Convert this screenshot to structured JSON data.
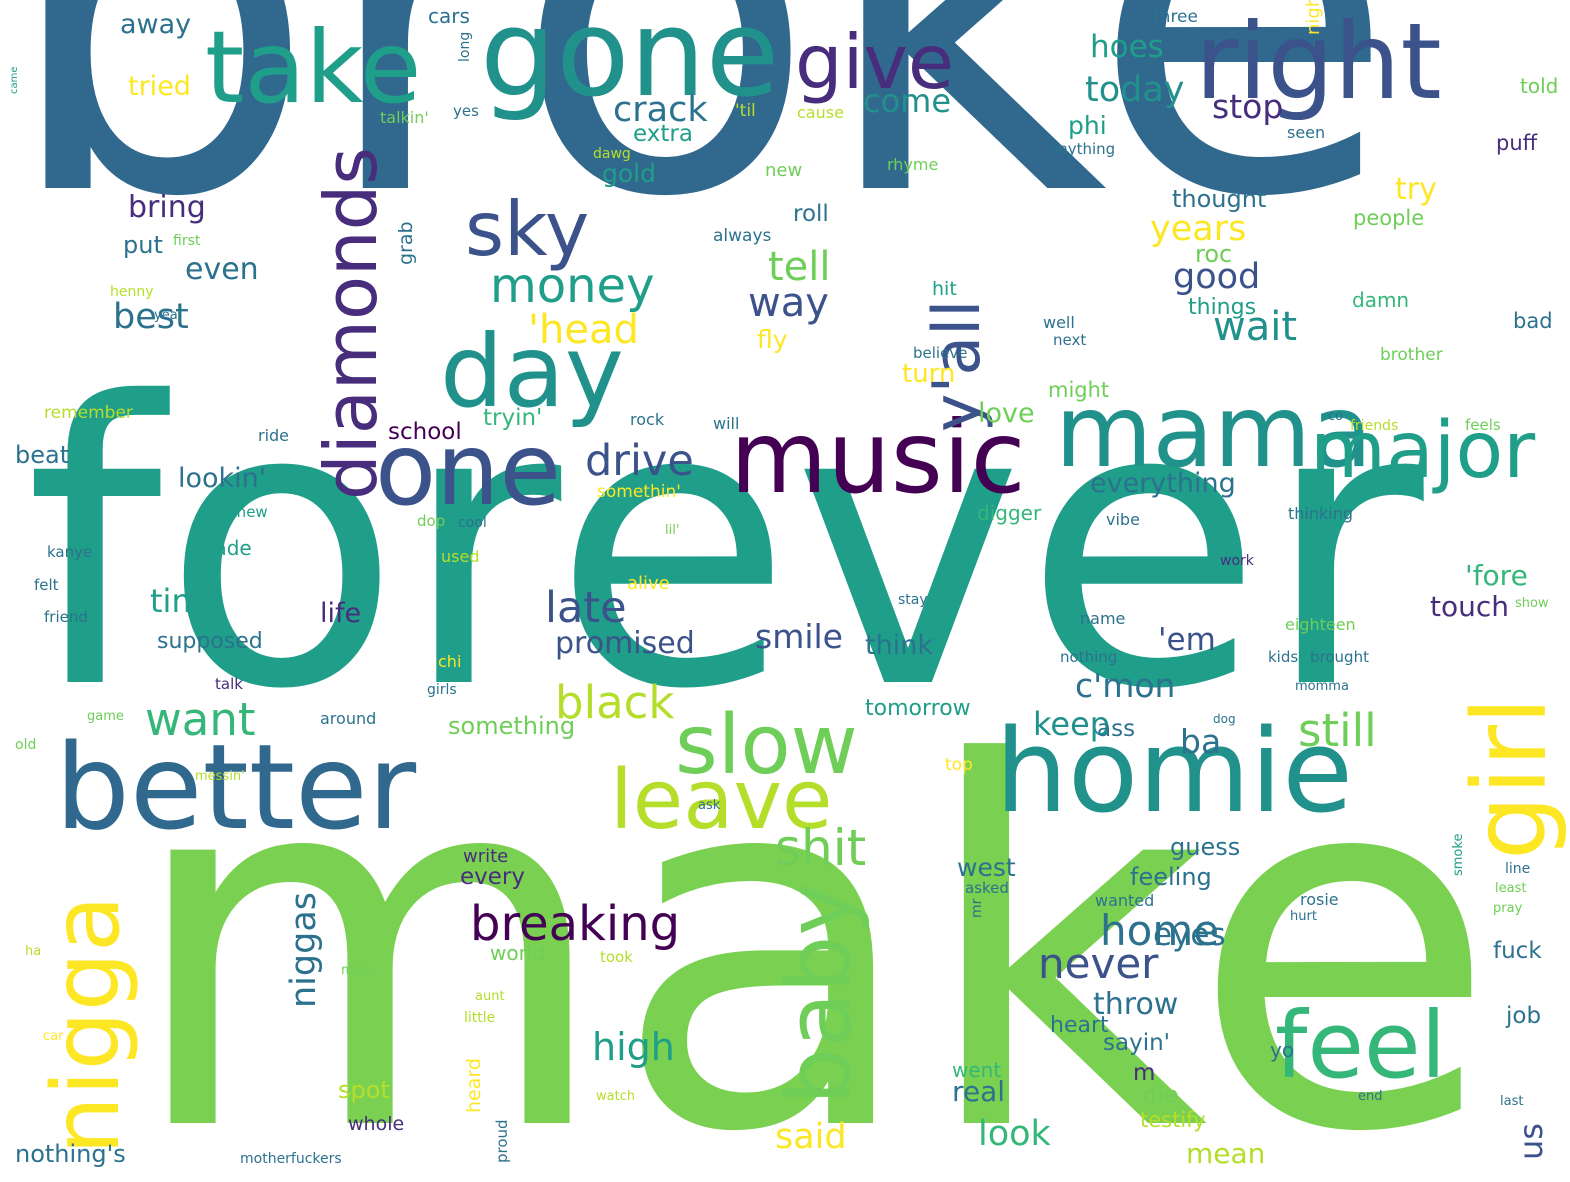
{
  "palette": {
    "blue": "#31688e",
    "slate": "#3b528b",
    "indigo": "#472d7b",
    "purple": "#440154",
    "teal": "#21918c",
    "cyan": "#2c728e",
    "sea": "#1f9e89",
    "green": "#35b779",
    "lime": "#6ece58",
    "grass": "#7ad151",
    "chartreuse": "#b5de2b",
    "yellow": "#fde725"
  },
  "words": [
    {
      "text": "broke",
      "color": "blue"
    },
    {
      "text": "forever",
      "color": "sea"
    },
    {
      "text": "make",
      "color": "grass"
    },
    {
      "text": "gone",
      "color": "teal"
    },
    {
      "text": "take",
      "color": "sea"
    },
    {
      "text": "right",
      "color": "slate"
    },
    {
      "text": "give",
      "color": "indigo"
    },
    {
      "text": "music",
      "color": "purple"
    },
    {
      "text": "mama",
      "color": "teal"
    },
    {
      "text": "major",
      "color": "sea"
    },
    {
      "text": "one",
      "color": "slate"
    },
    {
      "text": "day",
      "color": "teal"
    },
    {
      "text": "diamonds",
      "color": "indigo"
    },
    {
      "text": "y'all",
      "color": "slate"
    },
    {
      "text": "better",
      "color": "blue"
    },
    {
      "text": "homie",
      "color": "teal"
    },
    {
      "text": "girl",
      "color": "yellow"
    },
    {
      "text": "nigga",
      "color": "yellow"
    },
    {
      "text": "baby",
      "color": "lime"
    },
    {
      "text": "feel",
      "color": "green"
    },
    {
      "text": "slow",
      "color": "lime"
    },
    {
      "text": "leave",
      "color": "chartreuse"
    },
    {
      "text": "sky",
      "color": "slate"
    },
    {
      "text": "money",
      "color": "sea"
    },
    {
      "text": "breaking",
      "color": "purple"
    },
    {
      "text": "home",
      "color": "cyan"
    },
    {
      "text": "never",
      "color": "slate"
    },
    {
      "text": "still",
      "color": "lime"
    },
    {
      "text": "shit",
      "color": "lime"
    },
    {
      "text": "black",
      "color": "chartreuse"
    },
    {
      "text": "want",
      "color": "green"
    },
    {
      "text": "drive",
      "color": "slate"
    },
    {
      "text": "late",
      "color": "slate"
    },
    {
      "text": "wait",
      "color": "teal"
    },
    {
      "text": "way",
      "color": "slate"
    },
    {
      "text": "tell",
      "color": "lime"
    },
    {
      "text": "crack",
      "color": "cyan"
    },
    {
      "text": "'head",
      "color": "yellow"
    },
    {
      "text": "best",
      "color": "cyan"
    },
    {
      "text": "hoes",
      "color": "sea"
    },
    {
      "text": "today",
      "color": "teal"
    },
    {
      "text": "stop",
      "color": "indigo"
    },
    {
      "text": "come",
      "color": "teal"
    },
    {
      "text": "years",
      "color": "yellow"
    },
    {
      "text": "good",
      "color": "slate"
    },
    {
      "text": "high",
      "color": "sea"
    },
    {
      "text": "niggas",
      "color": "cyan"
    },
    {
      "text": "smile",
      "color": "slate"
    },
    {
      "text": "keep",
      "color": "teal"
    },
    {
      "text": "c'mon",
      "color": "cyan"
    },
    {
      "text": "'em",
      "color": "slate"
    },
    {
      "text": "said",
      "color": "yellow"
    },
    {
      "text": "look",
      "color": "green"
    },
    {
      "text": "time",
      "color": "sea"
    },
    {
      "text": "us",
      "color": "slate"
    },
    {
      "text": "ba",
      "color": "cyan"
    },
    {
      "text": "throw",
      "color": "cyan"
    },
    {
      "text": "eyes",
      "color": "cyan"
    },
    {
      "text": "promised",
      "color": "slate"
    },
    {
      "text": "bring",
      "color": "indigo"
    },
    {
      "text": "even",
      "color": "cyan"
    },
    {
      "text": "tryin'",
      "color": "green"
    },
    {
      "text": "lookin'",
      "color": "cyan"
    },
    {
      "text": "everything",
      "color": "cyan"
    },
    {
      "text": "'fore",
      "color": "green"
    },
    {
      "text": "touch",
      "color": "indigo"
    },
    {
      "text": "think",
      "color": "cyan"
    },
    {
      "text": "life",
      "color": "indigo"
    },
    {
      "text": "try",
      "color": "yellow"
    },
    {
      "text": "thought",
      "color": "cyan"
    },
    {
      "text": "gold",
      "color": "sea"
    },
    {
      "text": "roc",
      "color": "lime"
    },
    {
      "text": "love",
      "color": "lime"
    },
    {
      "text": "turn",
      "color": "yellow"
    },
    {
      "text": "fly",
      "color": "yellow"
    },
    {
      "text": "roll",
      "color": "cyan"
    },
    {
      "text": "phi",
      "color": "sea"
    },
    {
      "text": "tried",
      "color": "yellow"
    },
    {
      "text": "away",
      "color": "cyan"
    },
    {
      "text": "put",
      "color": "cyan"
    },
    {
      "text": "extra",
      "color": "sea"
    },
    {
      "text": "school",
      "color": "purple"
    },
    {
      "text": "beat",
      "color": "cyan"
    },
    {
      "text": "made",
      "color": "sea"
    },
    {
      "text": "supposed",
      "color": "cyan"
    },
    {
      "text": "west",
      "color": "cyan"
    },
    {
      "text": "feeling",
      "color": "cyan"
    },
    {
      "text": "guess",
      "color": "cyan"
    },
    {
      "text": "world",
      "color": "lime"
    },
    {
      "text": "sayin'",
      "color": "cyan"
    },
    {
      "text": "m",
      "color": "indigo"
    },
    {
      "text": "die",
      "color": "lime"
    },
    {
      "text": "real",
      "color": "cyan"
    },
    {
      "text": "mean",
      "color": "chartreuse"
    },
    {
      "text": "testify",
      "color": "chartreuse"
    },
    {
      "text": "fuck",
      "color": "cyan"
    },
    {
      "text": "job",
      "color": "cyan"
    },
    {
      "text": "spot",
      "color": "chartreuse"
    },
    {
      "text": "nothing's",
      "color": "cyan"
    },
    {
      "text": "every",
      "color": "indigo"
    },
    {
      "text": "write",
      "color": "indigo"
    },
    {
      "text": "something",
      "color": "lime"
    },
    {
      "text": "tomorrow",
      "color": "sea"
    },
    {
      "text": "ass",
      "color": "cyan"
    },
    {
      "text": "might",
      "color": "lime"
    },
    {
      "text": "heart",
      "color": "cyan"
    },
    {
      "text": "went",
      "color": "green"
    },
    {
      "text": "whole",
      "color": "indigo"
    },
    {
      "text": "yo",
      "color": "cyan"
    },
    {
      "text": "digger",
      "color": "green"
    },
    {
      "text": "cars",
      "color": "cyan"
    },
    {
      "text": "three",
      "color": "cyan"
    },
    {
      "text": "told",
      "color": "lime"
    },
    {
      "text": "puff",
      "color": "indigo"
    },
    {
      "text": "people",
      "color": "lime"
    },
    {
      "text": "damn",
      "color": "green"
    },
    {
      "text": "bad",
      "color": "cyan"
    },
    {
      "text": "brother",
      "color": "lime"
    },
    {
      "text": "things",
      "color": "sea"
    },
    {
      "text": "hit",
      "color": "sea"
    },
    {
      "text": "grab",
      "color": "cyan"
    },
    {
      "text": "well",
      "color": "cyan"
    },
    {
      "text": "next",
      "color": "cyan"
    },
    {
      "text": "believe",
      "color": "cyan"
    },
    {
      "text": "new",
      "color": "lime"
    },
    {
      "text": "rhyme",
      "color": "lime"
    },
    {
      "text": "always",
      "color": "cyan"
    },
    {
      "text": "anything",
      "color": "cyan"
    },
    {
      "text": "seen",
      "color": "cyan"
    },
    {
      "text": "night",
      "color": "yellow"
    },
    {
      "text": "'til",
      "color": "chartreuse"
    },
    {
      "text": "cause",
      "color": "chartreuse"
    },
    {
      "text": "talkin'",
      "color": "lime"
    },
    {
      "text": "yes",
      "color": "cyan"
    },
    {
      "text": "long",
      "color": "cyan"
    },
    {
      "text": "dawg",
      "color": "chartreuse"
    },
    {
      "text": "first",
      "color": "lime"
    },
    {
      "text": "henny",
      "color": "chartreuse"
    },
    {
      "text": "yea",
      "color": "cyan"
    },
    {
      "text": "remember",
      "color": "chartreuse"
    },
    {
      "text": "ride",
      "color": "cyan"
    },
    {
      "text": "rock",
      "color": "cyan"
    },
    {
      "text": "will",
      "color": "cyan"
    },
    {
      "text": "co",
      "color": "cyan"
    },
    {
      "text": "friends",
      "color": "chartreuse"
    },
    {
      "text": "feels",
      "color": "lime"
    },
    {
      "text": "somethin'",
      "color": "yellow"
    },
    {
      "text": "knew",
      "color": "sea"
    },
    {
      "text": "dop",
      "color": "lime"
    },
    {
      "text": "cool",
      "color": "cyan"
    },
    {
      "text": "lil'",
      "color": "lime"
    },
    {
      "text": "vibe",
      "color": "cyan"
    },
    {
      "text": "thinking",
      "color": "cyan"
    },
    {
      "text": "kanye",
      "color": "cyan"
    },
    {
      "text": "used",
      "color": "chartreuse"
    },
    {
      "text": "felt",
      "color": "cyan"
    },
    {
      "text": "alive",
      "color": "yellow"
    },
    {
      "text": "work",
      "color": "indigo"
    },
    {
      "text": "friend",
      "color": "cyan"
    },
    {
      "text": "stay",
      "color": "cyan"
    },
    {
      "text": "show",
      "color": "lime"
    },
    {
      "text": "name",
      "color": "cyan"
    },
    {
      "text": "eighteen",
      "color": "lime"
    },
    {
      "text": "chi",
      "color": "yellow"
    },
    {
      "text": "nothing",
      "color": "cyan"
    },
    {
      "text": "kids",
      "color": "cyan"
    },
    {
      "text": "brought",
      "color": "cyan"
    },
    {
      "text": "talk",
      "color": "indigo"
    },
    {
      "text": "girls",
      "color": "cyan"
    },
    {
      "text": "momma",
      "color": "cyan"
    },
    {
      "text": "game",
      "color": "lime"
    },
    {
      "text": "around",
      "color": "cyan"
    },
    {
      "text": "dog",
      "color": "cyan"
    },
    {
      "text": "old",
      "color": "lime"
    },
    {
      "text": "top",
      "color": "yellow"
    },
    {
      "text": "messin'",
      "color": "chartreuse"
    },
    {
      "text": "ask",
      "color": "cyan"
    },
    {
      "text": "smoke",
      "color": "sea"
    },
    {
      "text": "line",
      "color": "cyan"
    },
    {
      "text": "asked",
      "color": "cyan"
    },
    {
      "text": "least",
      "color": "lime"
    },
    {
      "text": "wanted",
      "color": "cyan"
    },
    {
      "text": "rosie",
      "color": "cyan"
    },
    {
      "text": "pray",
      "color": "lime"
    },
    {
      "text": "mr",
      "color": "cyan"
    },
    {
      "text": "hurt",
      "color": "cyan"
    },
    {
      "text": "ha",
      "color": "chartreuse"
    },
    {
      "text": "many",
      "color": "lime"
    },
    {
      "text": "took",
      "color": "chartreuse"
    },
    {
      "text": "aunt",
      "color": "chartreuse"
    },
    {
      "text": "little",
      "color": "chartreuse"
    },
    {
      "text": "car",
      "color": "yellow"
    },
    {
      "text": "heard",
      "color": "yellow"
    },
    {
      "text": "proud",
      "color": "cyan"
    },
    {
      "text": "watch",
      "color": "chartreuse"
    },
    {
      "text": "end",
      "color": "cyan"
    },
    {
      "text": "last",
      "color": "cyan"
    },
    {
      "text": "motherfuckers",
      "color": "cyan"
    },
    {
      "text": "came",
      "color": "sea"
    }
  ]
}
